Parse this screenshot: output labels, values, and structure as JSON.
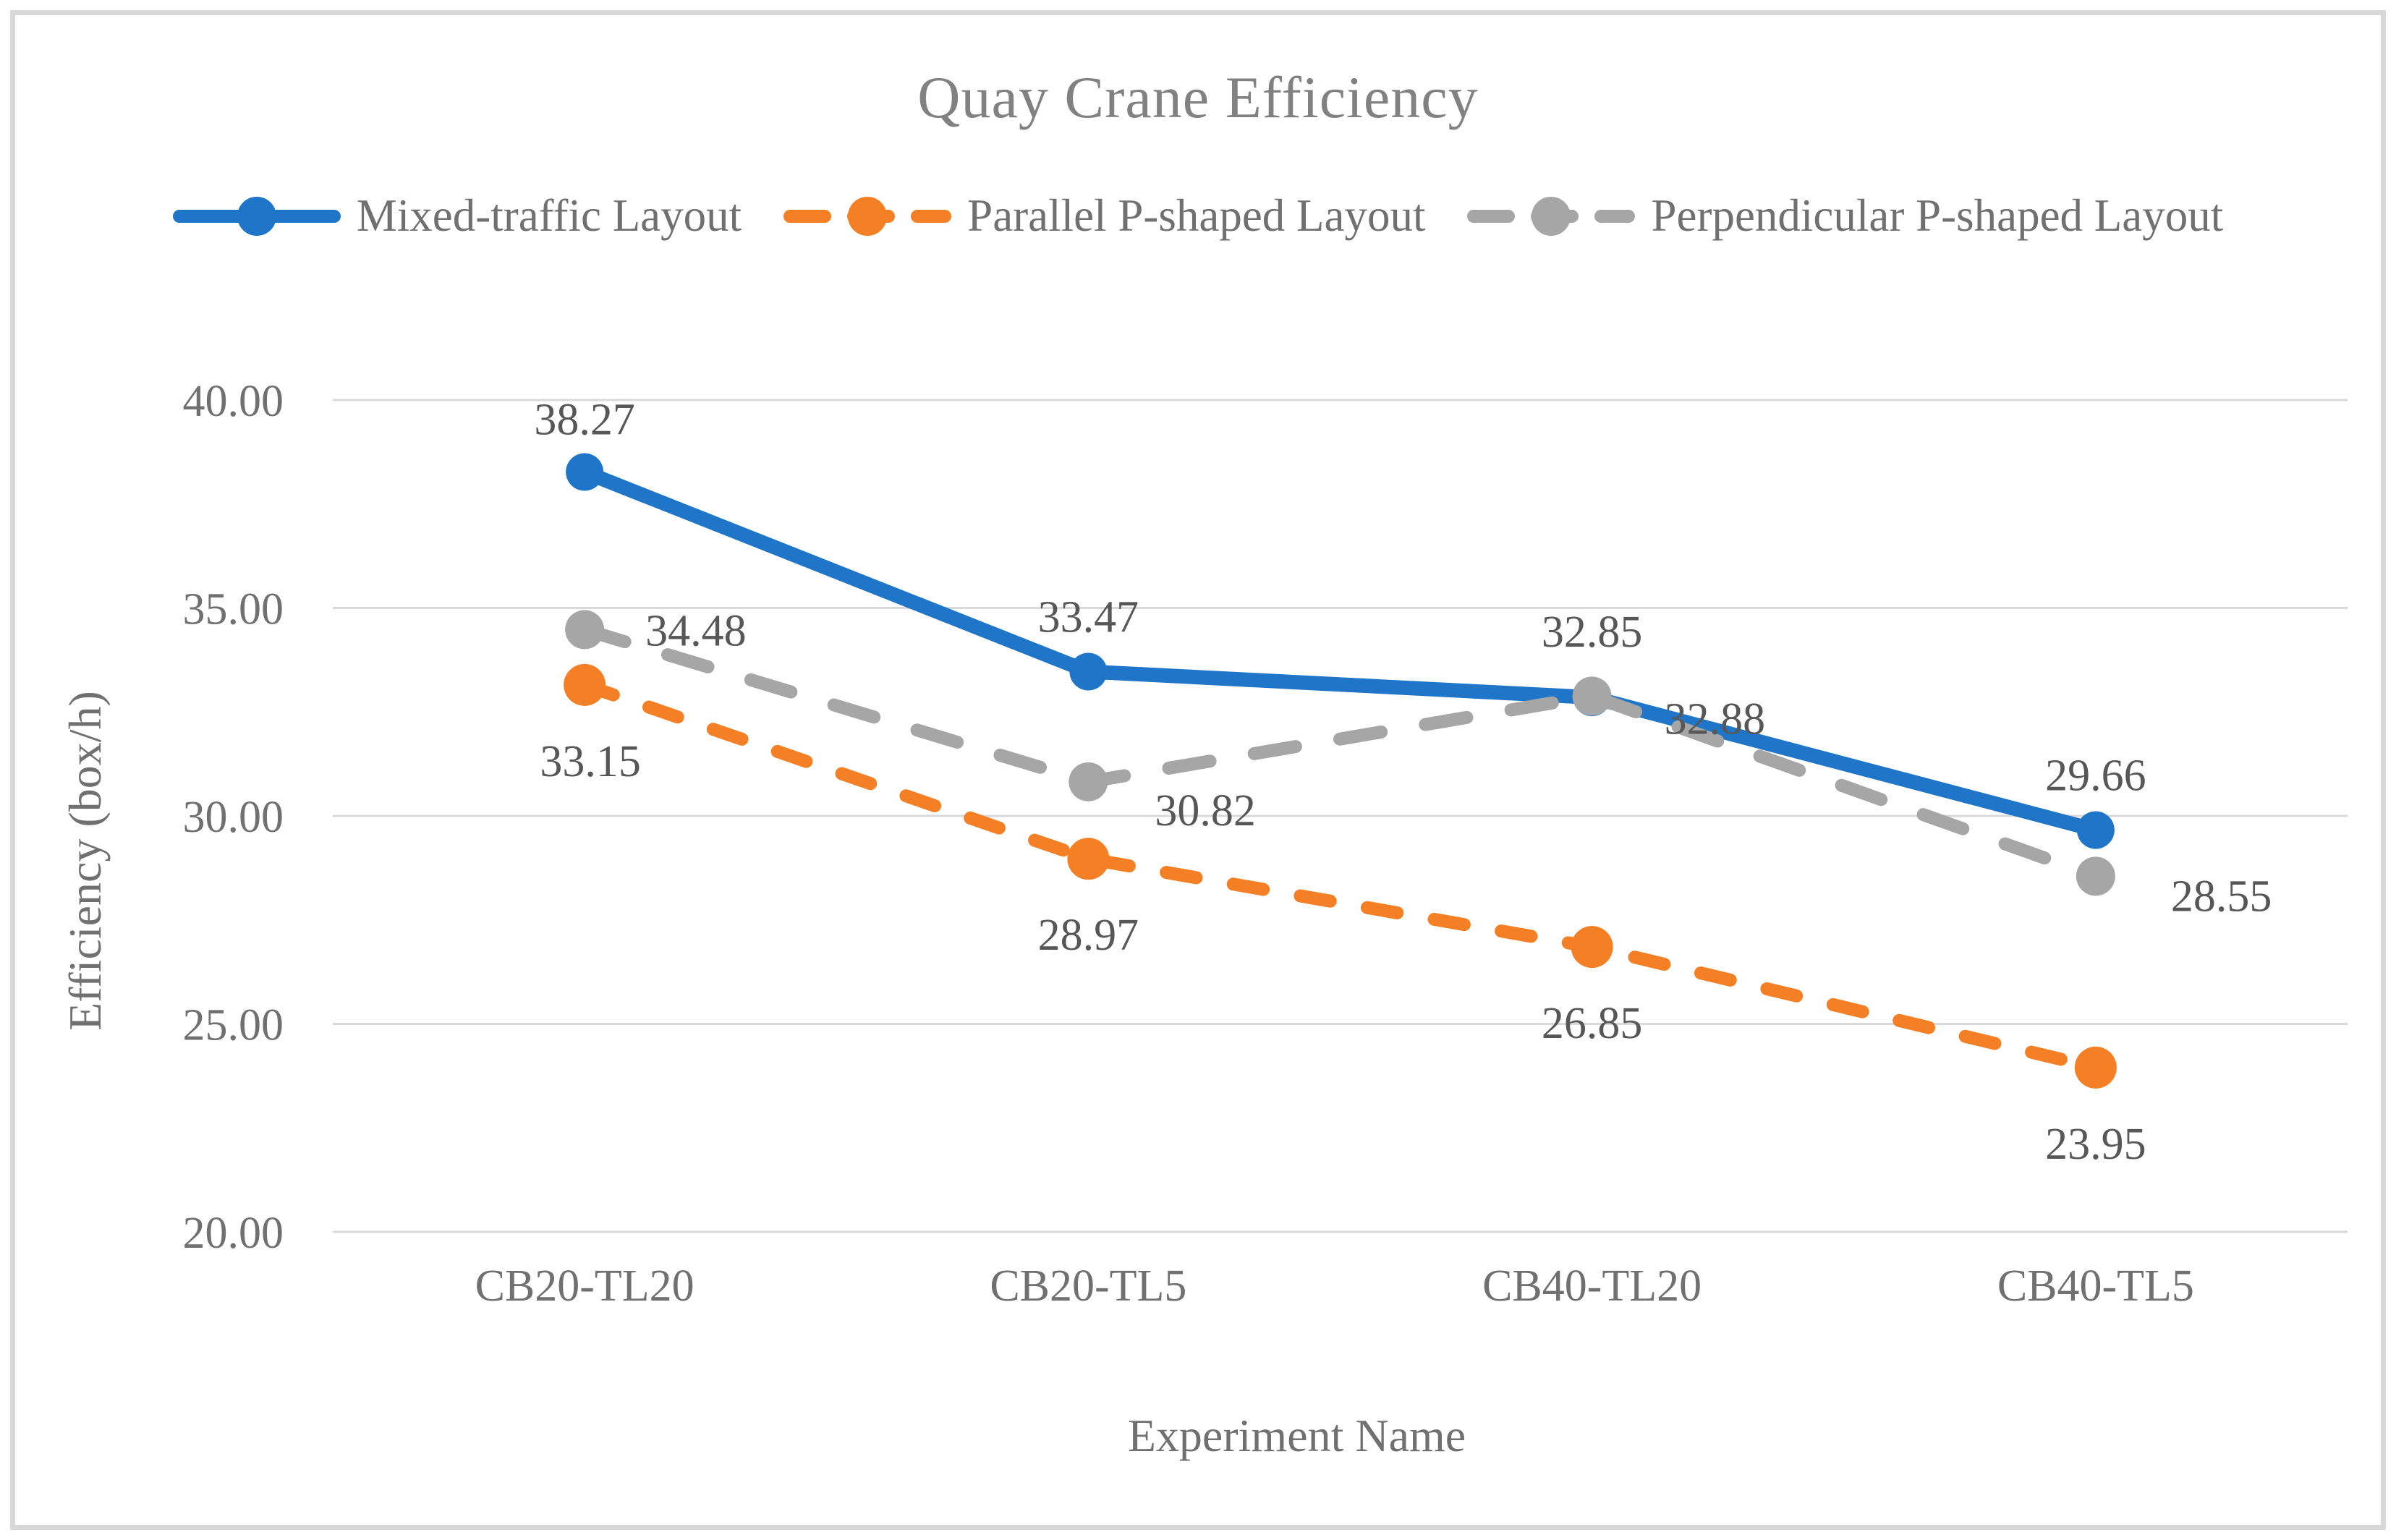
{
  "chart_data": {
    "type": "line",
    "title": "Quay Crane Efficiency",
    "xlabel": "Experiment Name",
    "ylabel": "Efficiency (box/h)",
    "categories": [
      "CB20-TL20",
      "CB20-TL5",
      "CB40-TL20",
      "CB40-TL5"
    ],
    "y_ticks": [
      {
        "value": 40,
        "label": "40.00"
      },
      {
        "value": 35,
        "label": "35.00"
      },
      {
        "value": 30,
        "label": "30.00"
      },
      {
        "value": 25,
        "label": "25.00"
      },
      {
        "value": 20,
        "label": "20.00"
      }
    ],
    "ylim": [
      20,
      40
    ],
    "grid": "horizontal-only",
    "legend_position": "top",
    "series": [
      {
        "name": "Mixed-traffic Layout",
        "color": "#1F76C8",
        "line_style": "solid",
        "marker": "circle",
        "values": [
          38.27,
          33.47,
          32.85,
          29.66
        ],
        "labels": [
          "38.27",
          "33.47",
          "32.85",
          "29.66"
        ],
        "label_position": "above"
      },
      {
        "name": "Parallel P-shaped Layout",
        "color": "#F57F25",
        "line_style": "dashed",
        "marker": "circle",
        "values": [
          33.15,
          28.97,
          26.85,
          23.95
        ],
        "labels": [
          "33.15",
          "28.97",
          "26.85",
          "23.95"
        ],
        "label_position": "below"
      },
      {
        "name": "Perpendicular P-shaped Layout",
        "color": "#A6A6A6",
        "line_style": "dashed",
        "marker": "circle",
        "values": [
          34.48,
          30.82,
          32.88,
          28.55
        ],
        "labels": [
          "34.48",
          "30.82",
          "32.88",
          "28.55"
        ],
        "label_position": "right"
      }
    ]
  },
  "colors": {
    "gridline": "#D9D9D9",
    "frame_border": "#D8D8D8",
    "title_text": "#818181",
    "axis_text": "#707070",
    "data_label_text": "#575757"
  }
}
